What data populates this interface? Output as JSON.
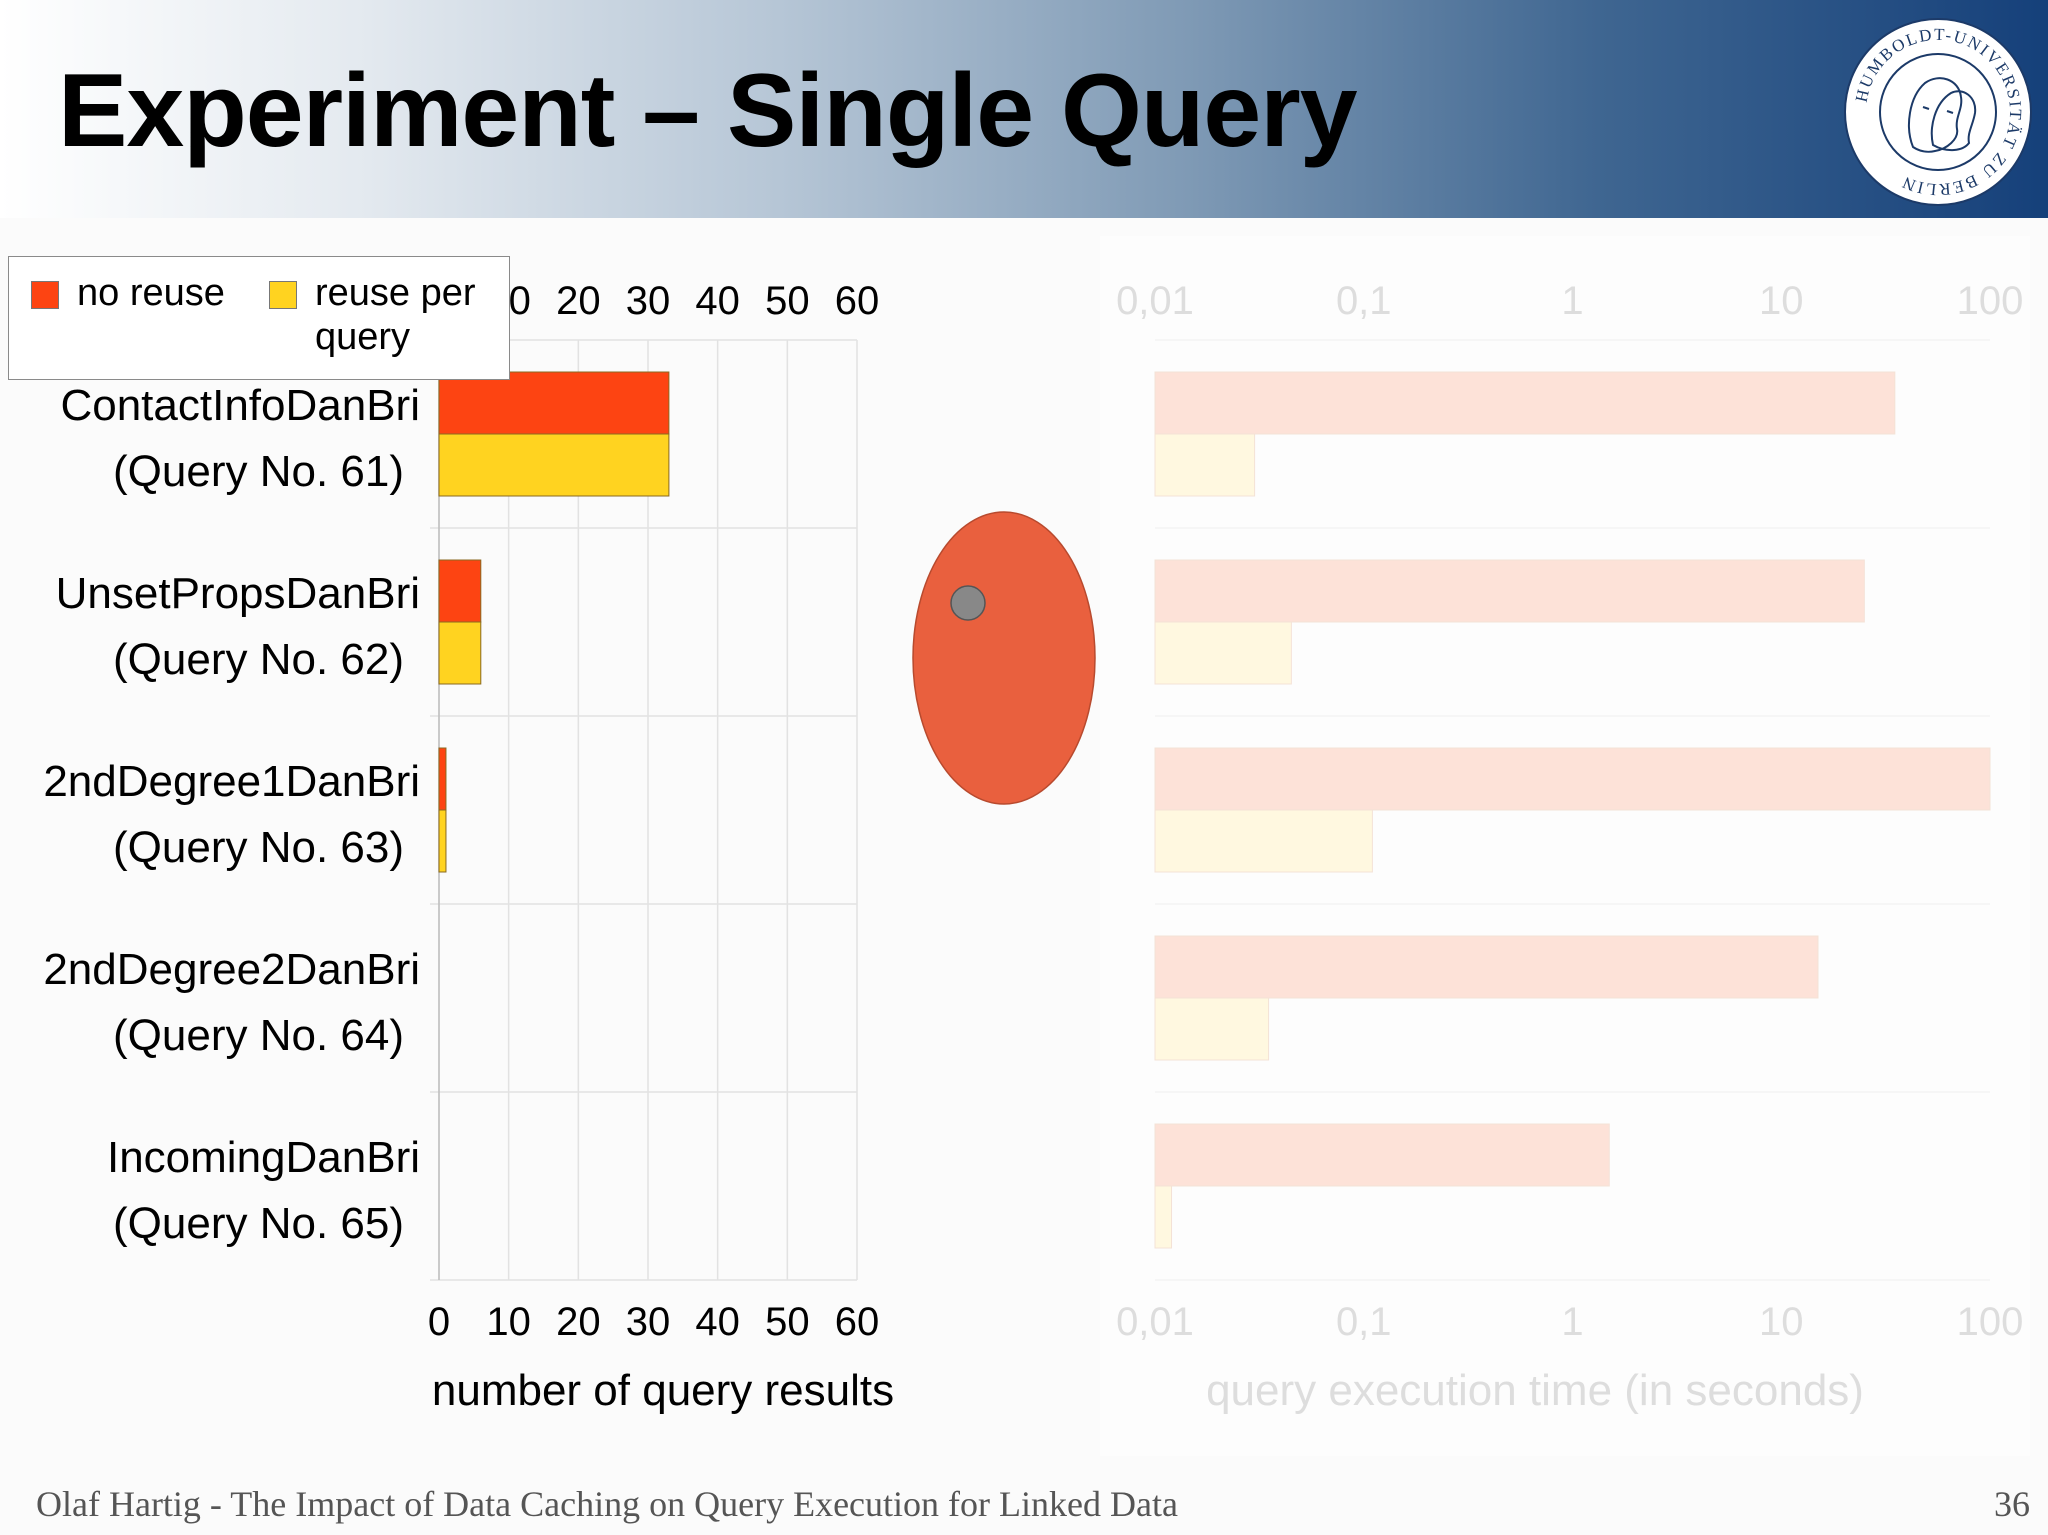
{
  "slide": {
    "title": "Experiment – Single Query",
    "footer": "Olaf Hartig - The Impact of Data Caching on Query Execution for Linked Data",
    "page_number": "36",
    "seal_text": "HUMBOLDT-UNIVERSITÄT ZU BERLIN"
  },
  "legend": {
    "items": [
      {
        "label": "no reuse",
        "color": "#fd4412"
      },
      {
        "label": "reuse per query",
        "color": "#ffd320"
      }
    ]
  },
  "colors": {
    "no_reuse": "#fd4412",
    "reuse_per_query": "#ffd320",
    "ellipse_fill": "#e9603e",
    "ellipse_dot": "#888888"
  },
  "chart_data": [
    {
      "type": "bar",
      "orientation": "horizontal",
      "categories": [
        [
          "ContactInfoDanBri",
          "(Query No. 61)"
        ],
        [
          "UnsetPropsDanBri",
          "(Query No. 62)"
        ],
        [
          "2ndDegree1DanBri",
          "(Query No. 63)"
        ],
        [
          "2ndDegree2DanBri",
          "(Query No. 64)"
        ],
        [
          "IncomingDanBri",
          "(Query No. 65)"
        ]
      ],
      "series": [
        {
          "name": "no reuse",
          "values": [
            33,
            6,
            1,
            0,
            0
          ]
        },
        {
          "name": "reuse per query",
          "values": [
            33,
            6,
            1,
            0,
            0
          ]
        }
      ],
      "xlabel": "number of query results",
      "xlim": [
        0,
        60
      ],
      "xticks": [
        "0",
        "10",
        "20",
        "30",
        "40",
        "50",
        "60"
      ],
      "top_axis": true,
      "grid": true,
      "legend_position": "top-left"
    },
    {
      "type": "bar",
      "orientation": "horizontal",
      "scale": "log",
      "faded": true,
      "series": [
        {
          "name": "no reuse",
          "values": [
            35,
            25,
            100,
            15,
            1.5
          ]
        },
        {
          "name": "reuse per query",
          "values": [
            0.03,
            0.045,
            0.11,
            0.035,
            0.012
          ]
        }
      ],
      "xlabel": "query execution time (in seconds)",
      "xlim": [
        0.01,
        100
      ],
      "xticks": [
        "0,01",
        "0,1",
        "1",
        "10",
        "100"
      ],
      "top_axis": true,
      "grid": true
    }
  ]
}
